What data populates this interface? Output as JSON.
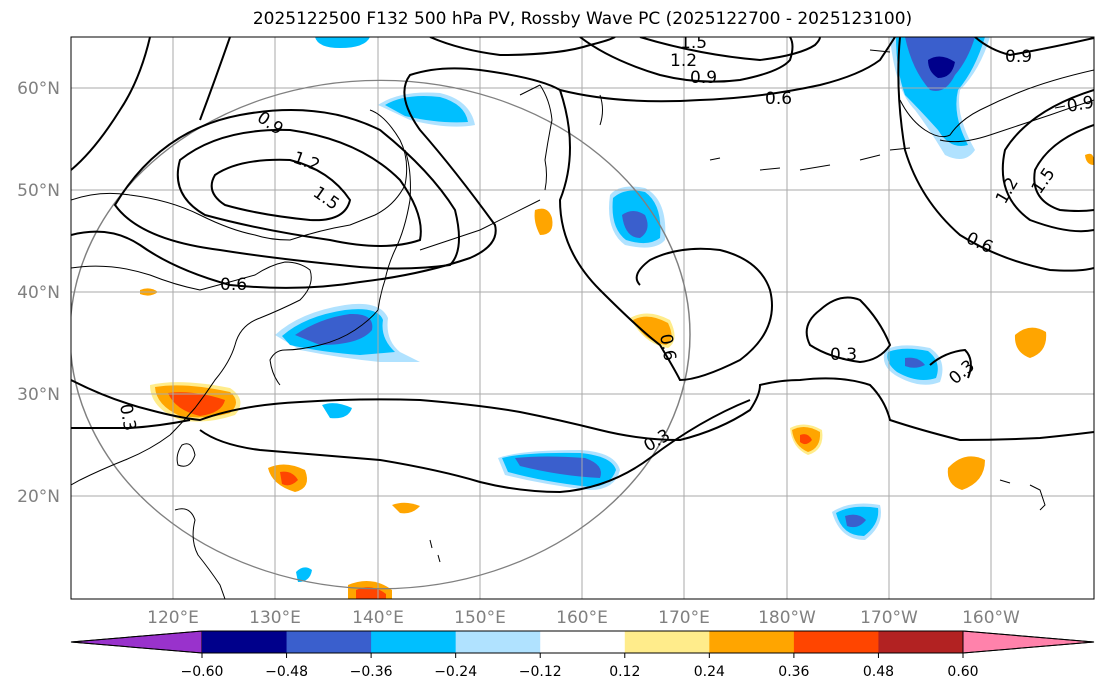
{
  "title": "2025122500 F132 500 hPa PV, Rossby Wave PC (2025122700 - 2025123100)",
  "map": {
    "lat_ticks": [
      "60°N",
      "50°N",
      "40°N",
      "30°N",
      "20°N"
    ],
    "lon_ticks": [
      "120°E",
      "130°E",
      "140°E",
      "150°E",
      "160°E",
      "170°E",
      "180°W",
      "170°W",
      "160°W"
    ],
    "contour_labels": [
      "1.5",
      "1.2",
      "0.9",
      "0.6",
      "0.9",
      "1.2",
      "1.5",
      "0.6",
      "0.3",
      "0.6",
      "0.3",
      "0.3",
      "0.3",
      "0.9",
      "0.6",
      "1.2",
      "1.5",
      "0.9"
    ]
  },
  "colorbar": {
    "colors": [
      "#9932cc",
      "#00008b",
      "#3a5fcd",
      "#00bfff",
      "#b0e2ff",
      "#ffffff",
      "#ffec8b",
      "#ffa500",
      "#ff4500",
      "#b22222",
      "#ff82ab"
    ],
    "tick_labels": [
      "−0.60",
      "−0.48",
      "−0.36",
      "−0.24",
      "−0.12",
      "0.12",
      "0.24",
      "0.36",
      "0.48",
      "0.60"
    ]
  }
}
